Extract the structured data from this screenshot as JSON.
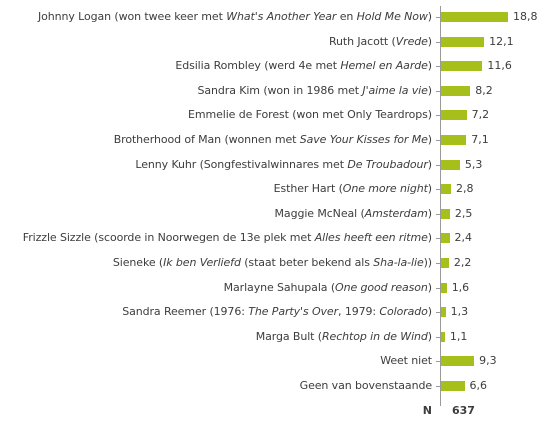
{
  "chart_data": {
    "type": "bar",
    "orientation": "horizontal",
    "bar_color": "#a7bf1a",
    "categories": [
      [
        {
          "t": "Johnny Logan (won twee keer met "
        },
        {
          "t": "What's Another Year",
          "i": true
        },
        {
          "t": " en "
        },
        {
          "t": "Hold Me Now",
          "i": true
        },
        {
          "t": ")"
        }
      ],
      [
        {
          "t": "Ruth Jacott ("
        },
        {
          "t": "Vrede",
          "i": true
        },
        {
          "t": ")"
        }
      ],
      [
        {
          "t": "Edsilia Rombley (werd 4e met "
        },
        {
          "t": "Hemel en Aarde",
          "i": true
        },
        {
          "t": ")"
        }
      ],
      [
        {
          "t": "Sandra Kim (won in 1986 met "
        },
        {
          "t": "J'aime la vie",
          "i": true
        },
        {
          "t": ")"
        }
      ],
      [
        {
          "t": "Emmelie de Forest (won met Only Teardrops)"
        }
      ],
      [
        {
          "t": "Brotherhood of Man (wonnen met "
        },
        {
          "t": "Save Your Kisses for Me",
          "i": true
        },
        {
          "t": ")"
        }
      ],
      [
        {
          "t": "Lenny Kuhr (Songfestivalwinnares met "
        },
        {
          "t": "De Troubadour",
          "i": true
        },
        {
          "t": ")"
        }
      ],
      [
        {
          "t": "Esther Hart ("
        },
        {
          "t": "One more night",
          "i": true
        },
        {
          "t": ")"
        }
      ],
      [
        {
          "t": "Maggie McNeal ("
        },
        {
          "t": "Amsterdam",
          "i": true
        },
        {
          "t": ")"
        }
      ],
      [
        {
          "t": "Frizzle Sizzle (scoorde in Noorwegen de 13e plek met "
        },
        {
          "t": "Alles heeft een ritme",
          "i": true
        },
        {
          "t": ")"
        }
      ],
      [
        {
          "t": "Sieneke ("
        },
        {
          "t": "Ik ben Verliefd",
          "i": true
        },
        {
          "t": " (staat beter bekend als "
        },
        {
          "t": "Sha-la-lie",
          "i": true
        },
        {
          "t": "))"
        }
      ],
      [
        {
          "t": "Marlayne Sahupala ("
        },
        {
          "t": "One good reason",
          "i": true
        },
        {
          "t": ")"
        }
      ],
      [
        {
          "t": "Sandra Reemer (1976: "
        },
        {
          "t": "The Party's Over",
          "i": true
        },
        {
          "t": ", 1979: "
        },
        {
          "t": "Colorado",
          "i": true
        },
        {
          "t": ")"
        }
      ],
      [
        {
          "t": "Marga Bult ("
        },
        {
          "t": "Rechtop in de Wind",
          "i": true
        },
        {
          "t": ")"
        }
      ],
      [
        {
          "t": "Weet niet"
        }
      ],
      [
        {
          "t": "Geen van bovenstaande"
        }
      ]
    ],
    "values": [
      18.8,
      12.1,
      11.6,
      8.2,
      7.2,
      7.1,
      5.3,
      2.8,
      2.5,
      2.4,
      2.2,
      1.6,
      1.3,
      1.1,
      9.3,
      6.6
    ],
    "value_labels": [
      "18,8",
      "12,1",
      "11,6",
      "8,2",
      "7,2",
      "7,1",
      "5,3",
      "2,8",
      "2,5",
      "2,4",
      "2,2",
      "1,6",
      "1,3",
      "1,1",
      "9,3",
      "6,6"
    ],
    "xlim": [
      0,
      18.8
    ],
    "grid": false,
    "n_label": "N",
    "n_value": "637"
  }
}
